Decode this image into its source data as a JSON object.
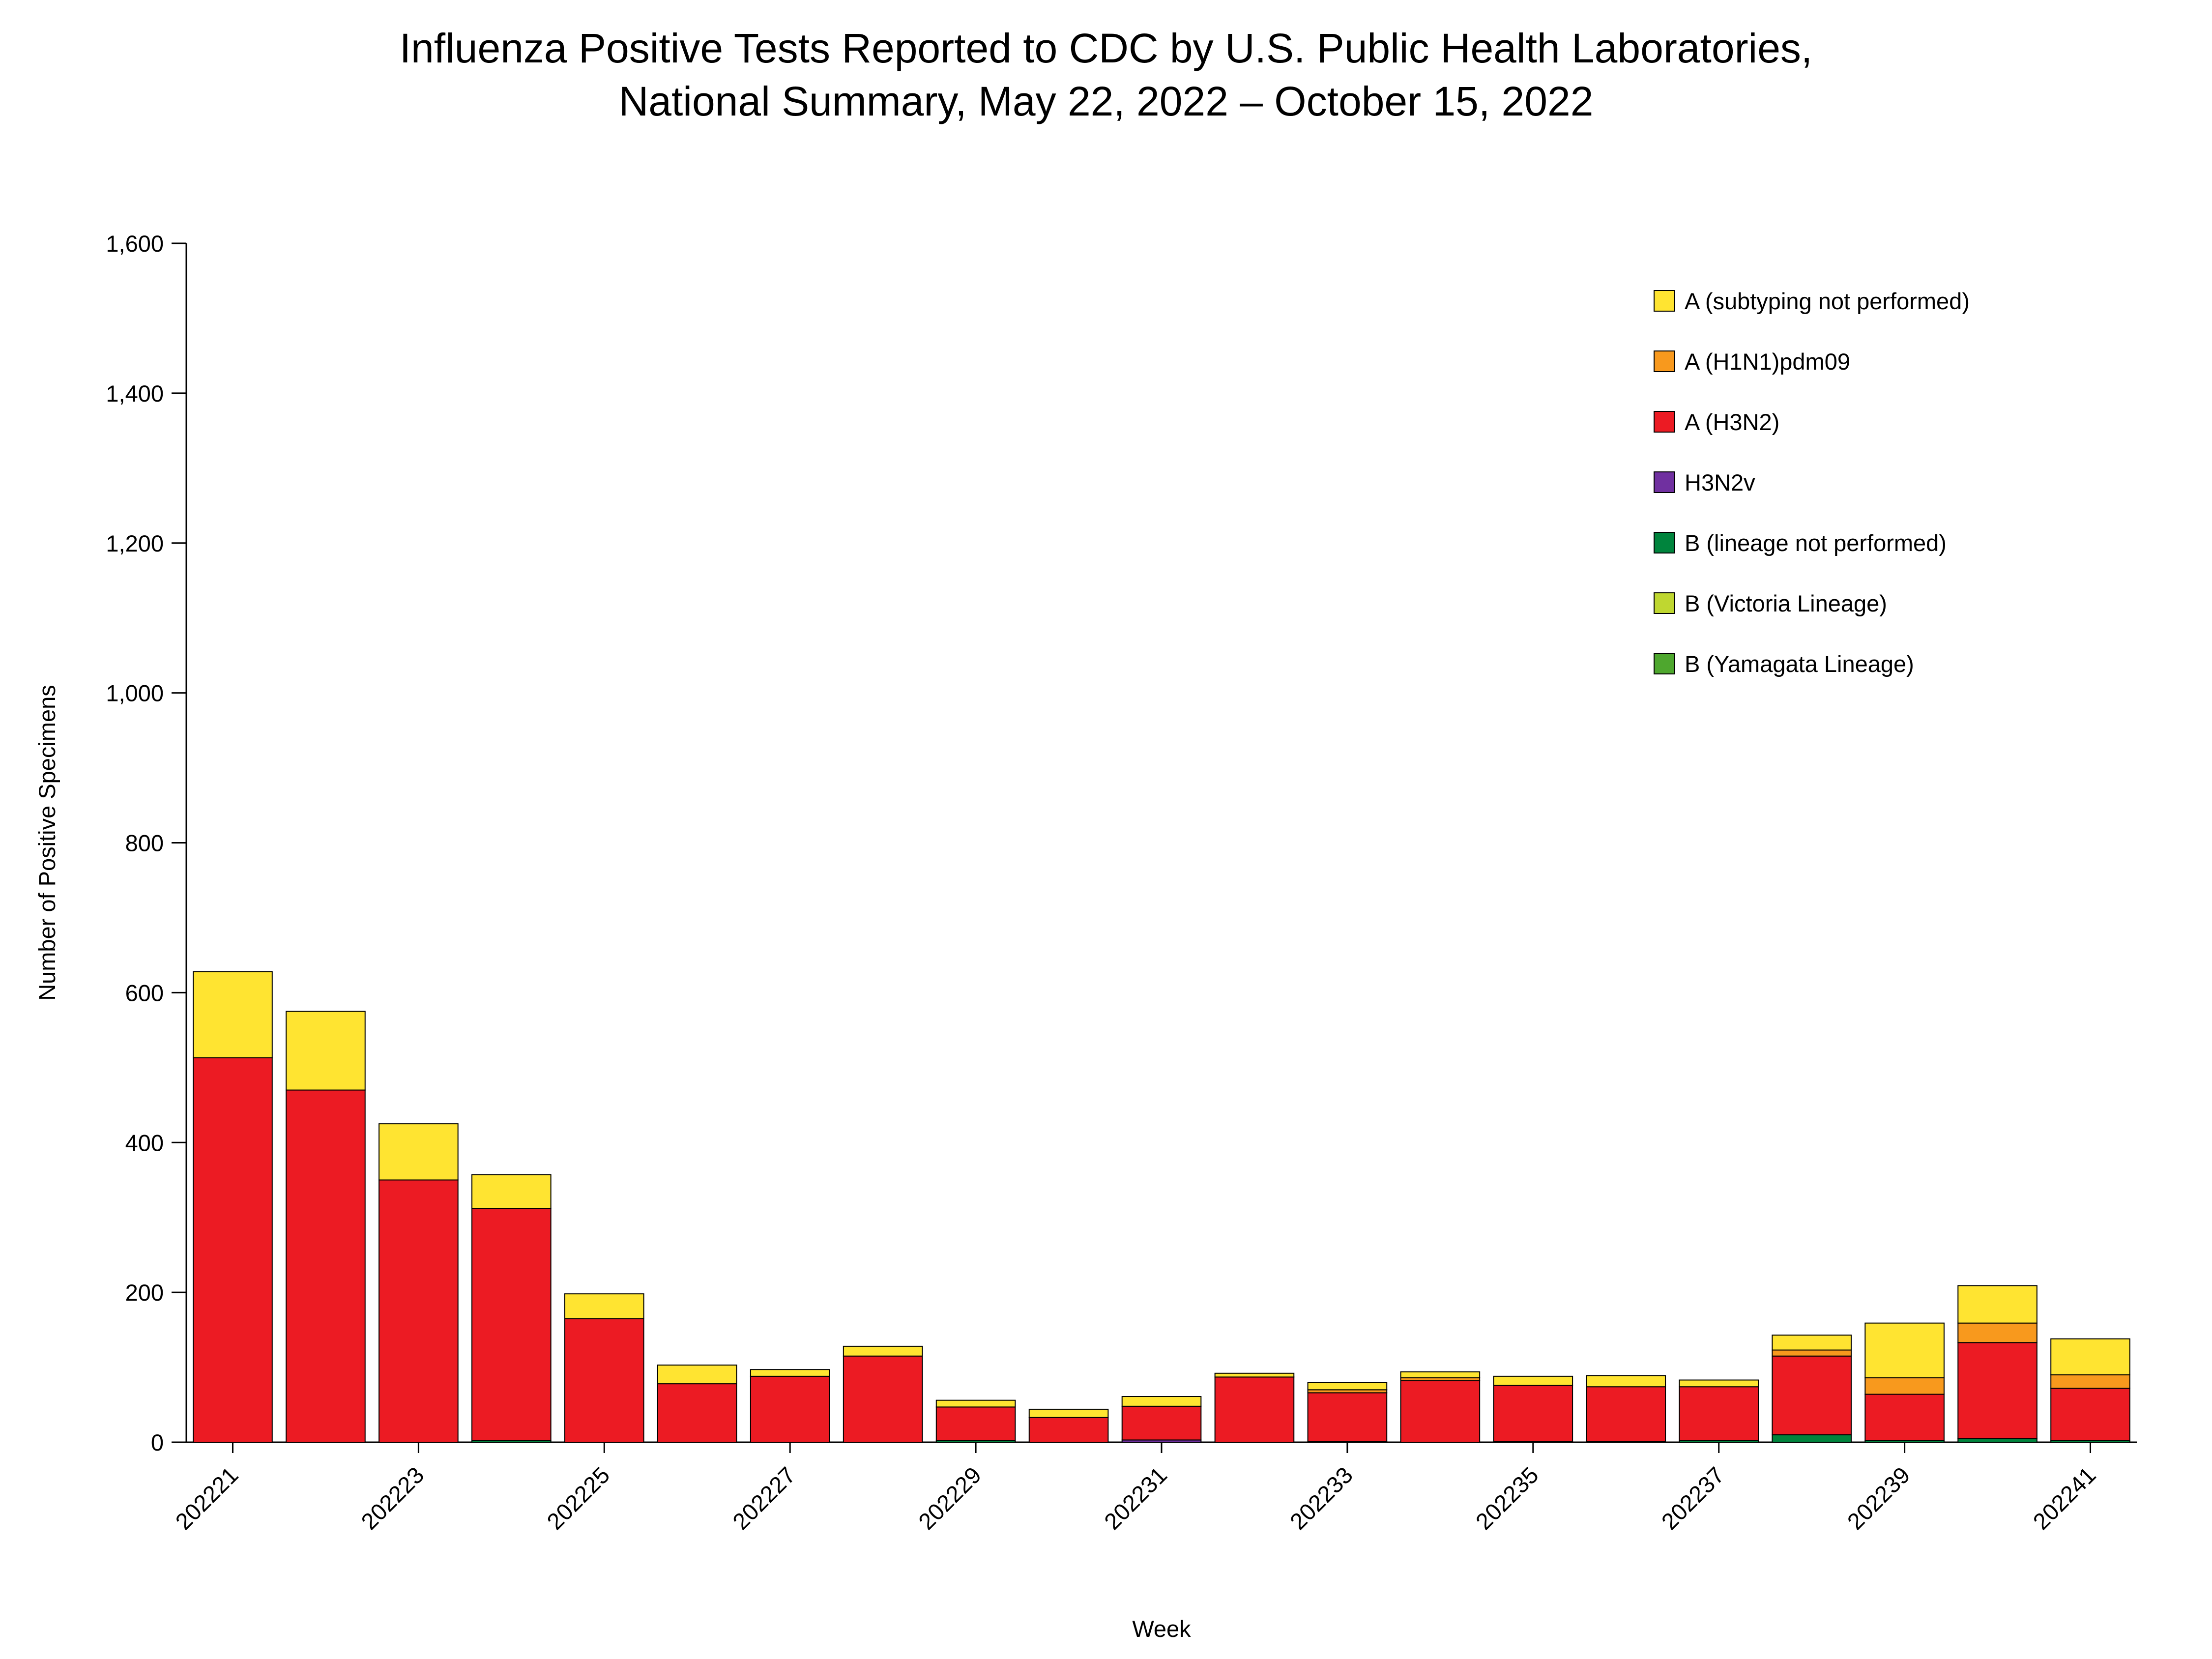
{
  "title": {
    "line1": "Influenza Positive Tests Reported to CDC by U.S. Public Health Laboratories,",
    "line2": "National Summary, May 22, 2022 – October 15, 2022"
  },
  "chart_data": {
    "type": "bar",
    "stacked": true,
    "title": "Influenza Positive Tests Reported to CDC by U.S. Public Health Laboratories, National Summary, May 22, 2022 – October 15, 2022",
    "xlabel": "Week",
    "ylabel": "Number of Positive Specimens",
    "ylim": [
      0,
      1600
    ],
    "ytick_interval": 200,
    "grid": false,
    "legend_position": "upper right",
    "categories": [
      "202221",
      "202222",
      "202223",
      "202224",
      "202225",
      "202226",
      "202227",
      "202228",
      "202229",
      "202230",
      "202231",
      "202232",
      "202233",
      "202234",
      "202235",
      "202236",
      "202237",
      "202238",
      "202239",
      "202240",
      "202241"
    ],
    "xtick_labels_shown": [
      "202221",
      "202223",
      "202225",
      "202227",
      "202229",
      "202231",
      "202233",
      "202235",
      "202237",
      "202239",
      "202241"
    ],
    "series": [
      {
        "name": "A (subtyping not performed)",
        "color": "#FFE431",
        "values": [
          115,
          105,
          75,
          45,
          33,
          25,
          9,
          13,
          9,
          11,
          13,
          5,
          10,
          8,
          12,
          15,
          9,
          20,
          73,
          50,
          48
        ]
      },
      {
        "name": "A (H1N1)pdm09",
        "color": "#F8991D",
        "values": [
          0,
          0,
          0,
          0,
          0,
          0,
          0,
          0,
          0,
          0,
          0,
          0,
          4,
          4,
          0,
          0,
          0,
          8,
          22,
          26,
          18
        ]
      },
      {
        "name": "A (H3N2)",
        "color": "#EC1B23",
        "values": [
          513,
          470,
          350,
          310,
          165,
          78,
          88,
          115,
          45,
          33,
          45,
          87,
          65,
          82,
          75,
          73,
          72,
          105,
          62,
          128,
          70
        ]
      },
      {
        "name": "H3N2v",
        "color": "#7030A0",
        "values": [
          0,
          0,
          0,
          0,
          0,
          0,
          0,
          0,
          0,
          0,
          3,
          0,
          0,
          0,
          0,
          0,
          0,
          0,
          0,
          0,
          0
        ]
      },
      {
        "name": "B (lineage not performed)",
        "color": "#00843D",
        "values": [
          0,
          0,
          0,
          2,
          0,
          0,
          0,
          0,
          2,
          0,
          0,
          0,
          1,
          0,
          1,
          1,
          2,
          10,
          2,
          5,
          2
        ]
      },
      {
        "name": "B (Victoria Lineage)",
        "color": "#BFD730",
        "values": [
          0,
          0,
          0,
          0,
          0,
          0,
          0,
          0,
          0,
          0,
          0,
          0,
          0,
          0,
          0,
          0,
          0,
          0,
          0,
          0,
          0
        ]
      },
      {
        "name": "B (Yamagata Lineage)",
        "color": "#4EA72E",
        "values": [
          0,
          0,
          0,
          0,
          0,
          0,
          0,
          0,
          0,
          0,
          0,
          0,
          0,
          0,
          0,
          0,
          0,
          0,
          0,
          0,
          0
        ]
      }
    ]
  }
}
